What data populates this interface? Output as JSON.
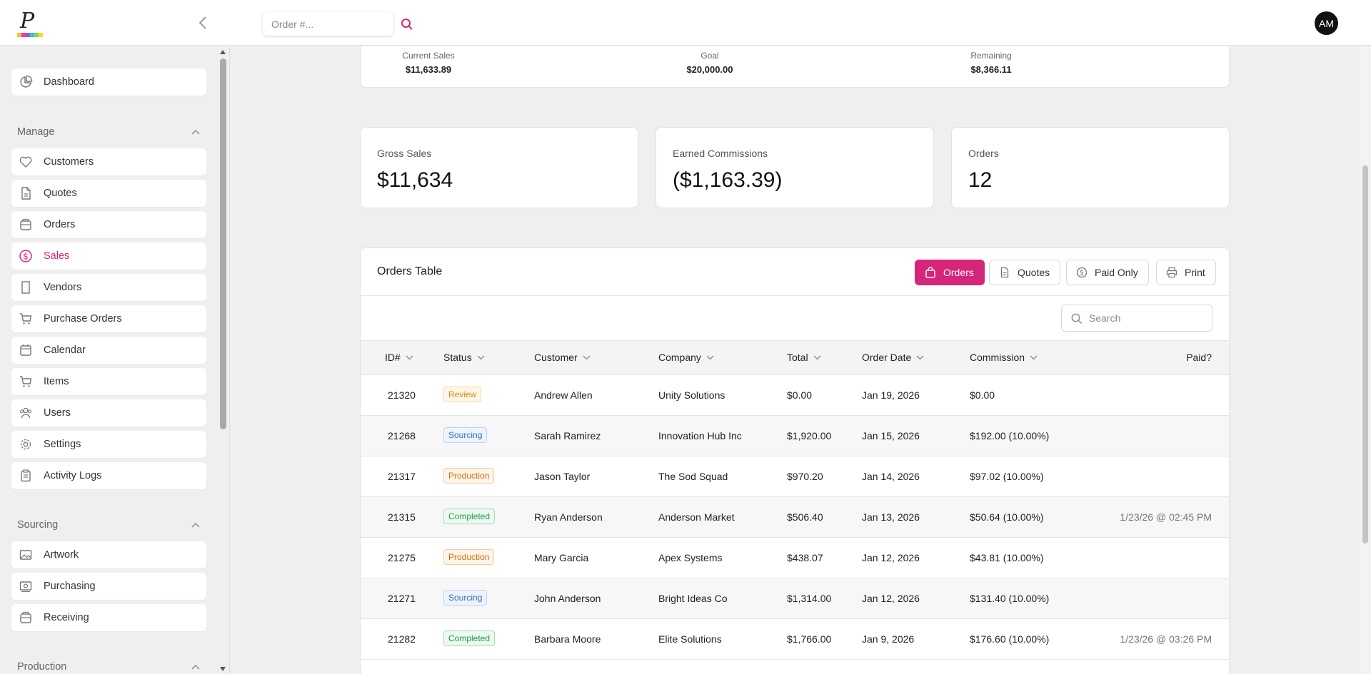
{
  "app": {
    "logo_letter": "P"
  },
  "header": {
    "order_search_placeholder": "Order #...",
    "avatar_initials": "AM"
  },
  "sidebar": {
    "dashboard": {
      "label": "Dashboard",
      "icon": "pie-chart-icon"
    },
    "sections": [
      {
        "label": "Manage",
        "items": [
          {
            "label": "Customers",
            "icon": "heart-icon"
          },
          {
            "label": "Quotes",
            "icon": "document-icon"
          },
          {
            "label": "Orders",
            "icon": "tray-icon"
          },
          {
            "label": "Sales",
            "icon": "dollar-circle-icon",
            "active": true
          },
          {
            "label": "Vendors",
            "icon": "building-icon"
          },
          {
            "label": "Purchase Orders",
            "icon": "cart-icon"
          },
          {
            "label": "Calendar",
            "icon": "calendar-icon"
          },
          {
            "label": "Items",
            "icon": "cart-icon"
          },
          {
            "label": "Users",
            "icon": "users-icon"
          },
          {
            "label": "Settings",
            "icon": "gear-icon"
          },
          {
            "label": "Activity Logs",
            "icon": "clipboard-icon"
          }
        ]
      },
      {
        "label": "Sourcing",
        "items": [
          {
            "label": "Artwork",
            "icon": "image-icon"
          },
          {
            "label": "Purchasing",
            "icon": "money-icon"
          },
          {
            "label": "Receiving",
            "icon": "tray-icon"
          }
        ]
      },
      {
        "label": "Production",
        "items": []
      }
    ]
  },
  "goal": {
    "current_label": "Current Sales",
    "current_value": "$11,633.89",
    "goal_label": "Goal",
    "goal_value": "$20,000.00",
    "remaining_label": "Remaining",
    "remaining_value": "$8,366.11"
  },
  "stats": {
    "gross_label": "Gross Sales",
    "gross_value": "$11,634",
    "commission_label": "Earned Commissions",
    "commission_value": "($1,163.39)",
    "orders_label": "Orders",
    "orders_value": "12"
  },
  "table": {
    "title": "Orders Table",
    "buttons": {
      "orders": "Orders",
      "quotes": "Quotes",
      "paid_only": "Paid Only",
      "print": "Print"
    },
    "search_placeholder": "Search",
    "columns": {
      "id": "ID#",
      "status": "Status",
      "customer": "Customer",
      "company": "Company",
      "total": "Total",
      "order_date": "Order Date",
      "commission": "Commission",
      "paid": "Paid?"
    },
    "rows": [
      {
        "id": "21320",
        "status": "Review",
        "status_type": "review",
        "customer": "Andrew Allen",
        "company": "Unity Solutions",
        "total": "$0.00",
        "date": "Jan 19, 2026",
        "commission": "$0.00",
        "paid": ""
      },
      {
        "id": "21268",
        "status": "Sourcing",
        "status_type": "sourcing",
        "customer": "Sarah Ramirez",
        "company": "Innovation Hub Inc",
        "total": "$1,920.00",
        "date": "Jan 15, 2026",
        "commission": "$192.00 (10.00%)",
        "paid": ""
      },
      {
        "id": "21317",
        "status": "Production",
        "status_type": "production",
        "customer": "Jason Taylor",
        "company": "The Sod Squad",
        "total": "$970.20",
        "date": "Jan 14, 2026",
        "commission": "$97.02 (10.00%)",
        "paid": ""
      },
      {
        "id": "21315",
        "status": "Completed",
        "status_type": "completed",
        "customer": "Ryan Anderson",
        "company": "Anderson Market",
        "total": "$506.40",
        "date": "Jan 13, 2026",
        "commission": "$50.64 (10.00%)",
        "paid": "1/23/26 @ 02:45 PM"
      },
      {
        "id": "21275",
        "status": "Production",
        "status_type": "production",
        "customer": "Mary Garcia",
        "company": "Apex Systems",
        "total": "$438.07",
        "date": "Jan 12, 2026",
        "commission": "$43.81 (10.00%)",
        "paid": ""
      },
      {
        "id": "21271",
        "status": "Sourcing",
        "status_type": "sourcing",
        "customer": "John Anderson",
        "company": "Bright Ideas Co",
        "total": "$1,314.00",
        "date": "Jan 12, 2026",
        "commission": "$131.40 (10.00%)",
        "paid": ""
      },
      {
        "id": "21282",
        "status": "Completed",
        "status_type": "completed",
        "customer": "Barbara Moore",
        "company": "Elite Solutions",
        "total": "$1,766.00",
        "date": "Jan 9, 2026",
        "commission": "$176.60 (10.00%)",
        "paid": "1/23/26 @ 03:26 PM"
      }
    ]
  },
  "colors": {
    "accent": "#d6267a",
    "logo_stripe": [
      "#f3c623",
      "#f03fa0",
      "#9b59d0",
      "#2ec4e6",
      "#7ed957",
      "#f7e017"
    ]
  }
}
